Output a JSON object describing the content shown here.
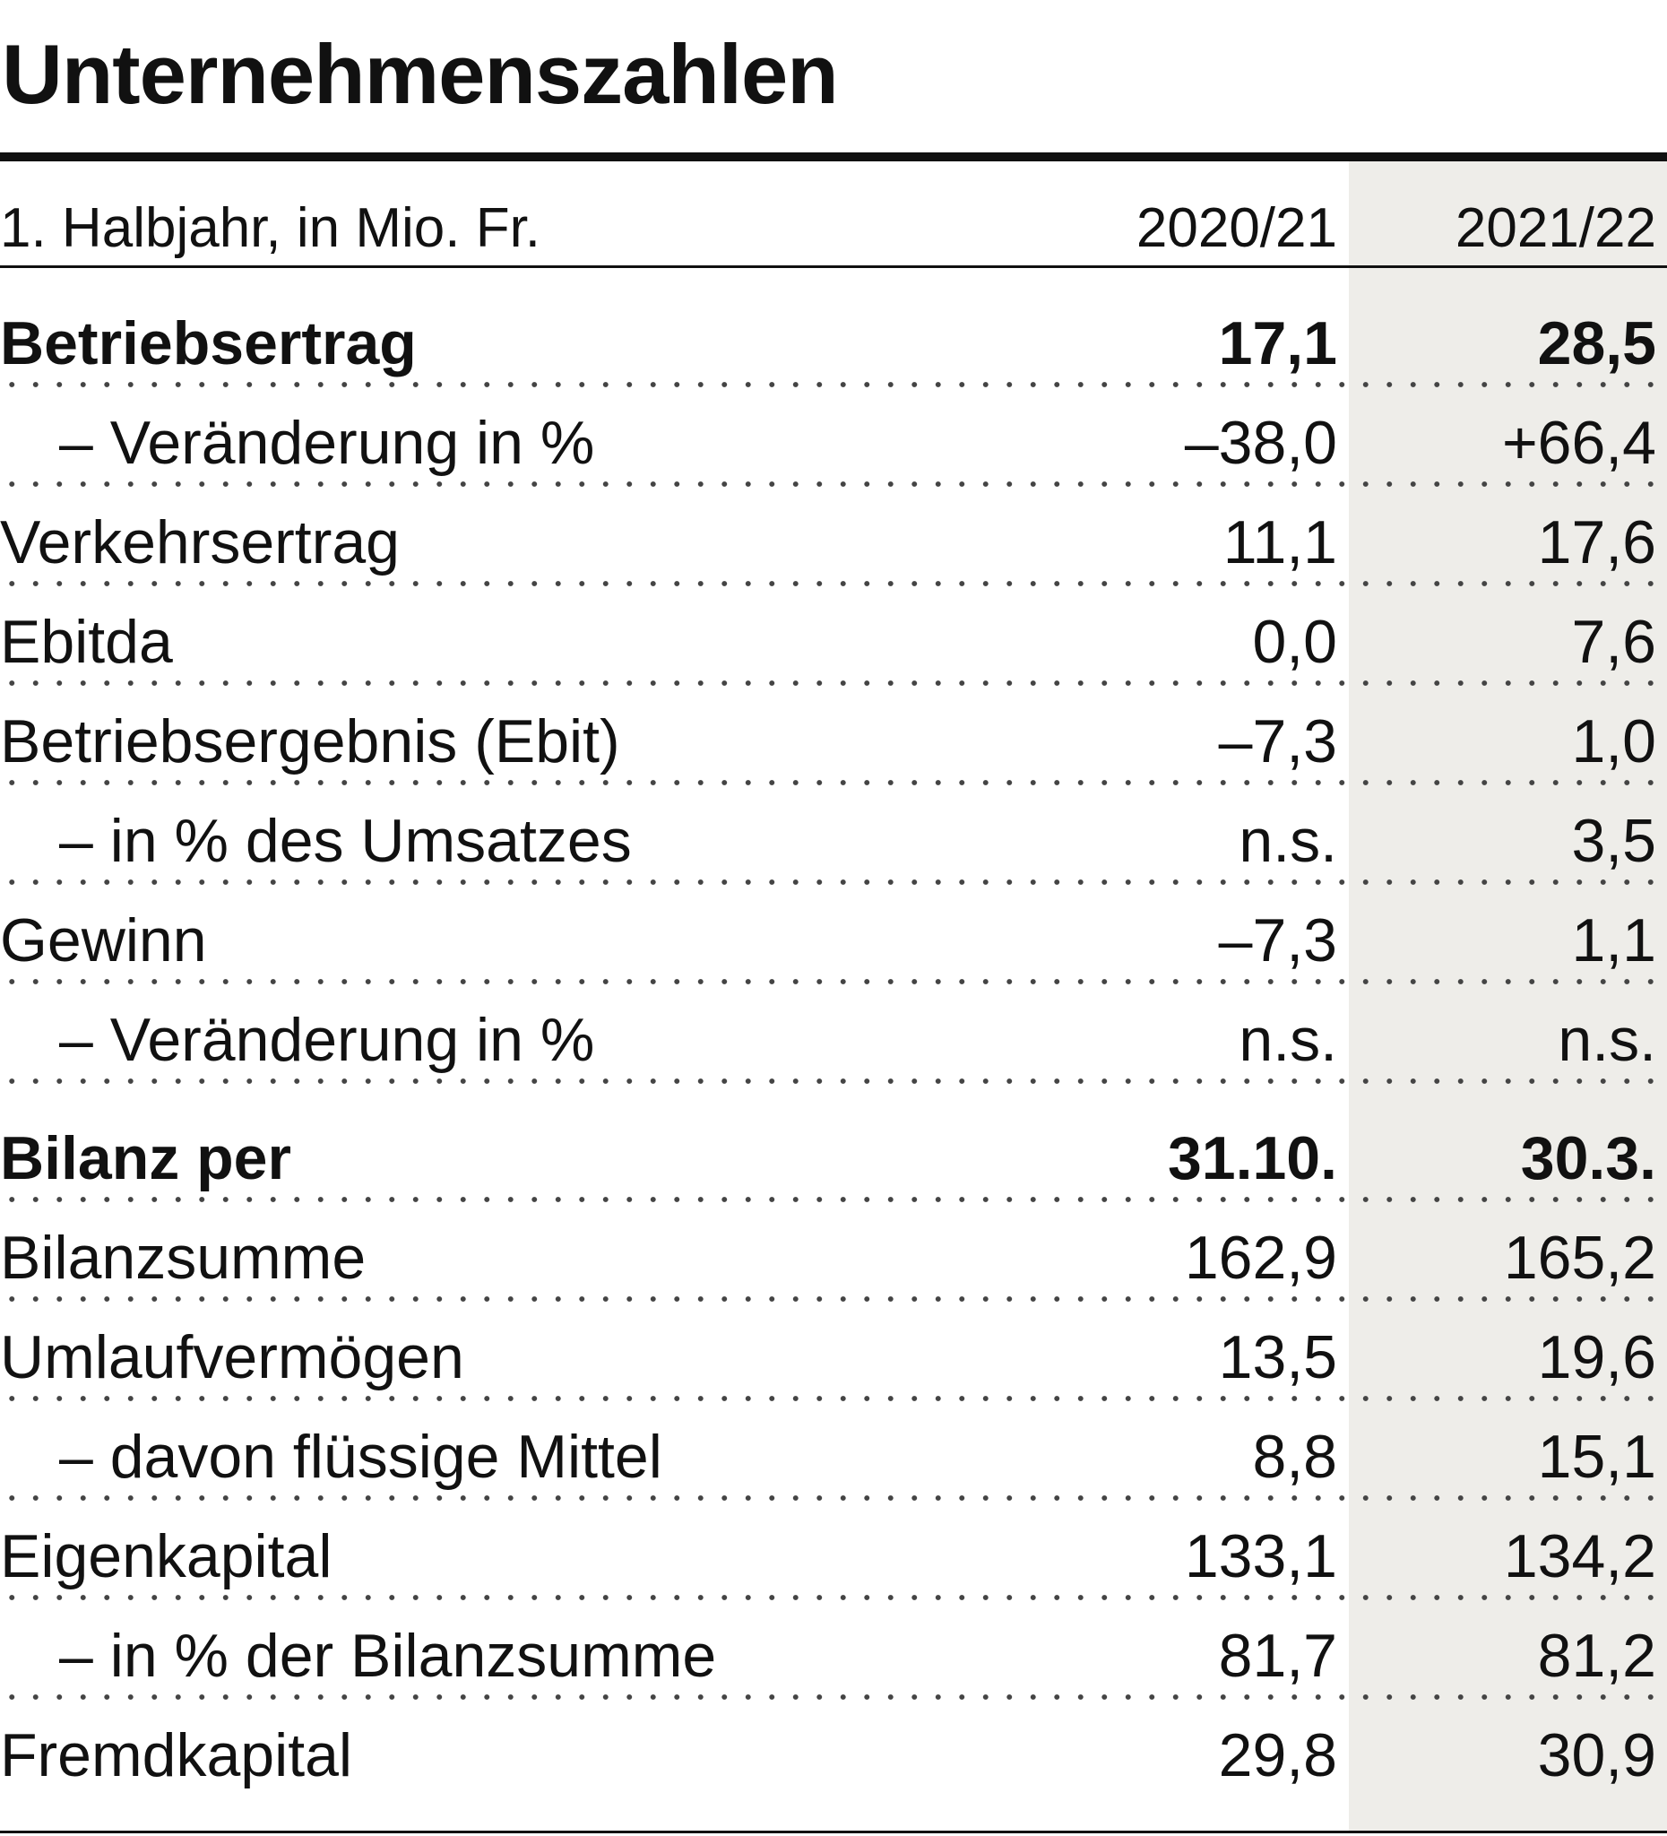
{
  "title": "Unternehmenszahlen",
  "header": {
    "label": "1. Halbjahr, in Mio. Fr.",
    "col1": "2020/21",
    "col2": "2021/22"
  },
  "rows": [
    {
      "label": "Betriebsertrag",
      "v1": "17,1",
      "v2": "28,5"
    },
    {
      "label": "– Veränderung in %",
      "v1": "–38,0",
      "v2": "+66,4"
    },
    {
      "label": "Verkehrsertrag",
      "v1": "11,1",
      "v2": "17,6"
    },
    {
      "label": "Ebitda",
      "v1": "0,0",
      "v2": "7,6"
    },
    {
      "label": "Betriebsergebnis (Ebit)",
      "v1": "–7,3",
      "v2": "1,0"
    },
    {
      "label": "– in % des Umsatzes",
      "v1": "n.s.",
      "v2": "3,5"
    },
    {
      "label": "Gewinn",
      "v1": "–7,3",
      "v2": "1,1"
    },
    {
      "label": "– Veränderung in %",
      "v1": "n.s.",
      "v2": "n.s."
    },
    {
      "label": "Bilanz per",
      "v1": "31.10.",
      "v2": "30.3."
    },
    {
      "label": "Bilanzsumme",
      "v1": "162,9",
      "v2": "165,2"
    },
    {
      "label": "Umlaufvermögen",
      "v1": "13,5",
      "v2": "19,6"
    },
    {
      "label": "– davon flüssige Mittel",
      "v1": "8,8",
      "v2": "15,1"
    },
    {
      "label": "Eigenkapital",
      "v1": "133,1",
      "v2": "134,2"
    },
    {
      "label": "– in % der Bilanzsumme",
      "v1": "81,7",
      "v2": "81,2"
    },
    {
      "label": "Fremdkapital",
      "v1": "29,8",
      "v2": "30,9"
    }
  ]
}
